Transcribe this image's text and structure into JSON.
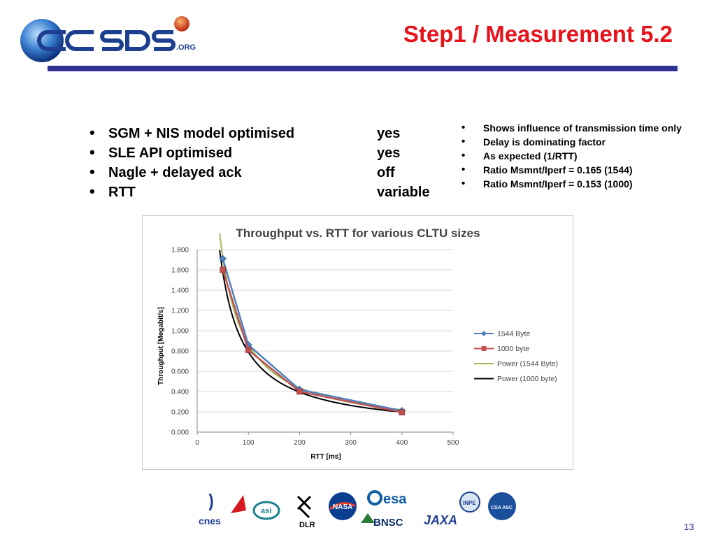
{
  "header": {
    "logo_text": "CCSDS.ORG",
    "title": "Step1 / Measurement 5.2",
    "rule_color": "#2e3192",
    "title_color": "#e8121b"
  },
  "settings": [
    {
      "label": "SGM + NIS model optimised",
      "value": "yes"
    },
    {
      "label": "SLE API optimised",
      "value": "yes"
    },
    {
      "label": "Nagle + delayed ack",
      "value": "off"
    },
    {
      "label": "RTT",
      "value": "variable"
    }
  ],
  "observations": [
    "Shows influence of transmission time only",
    "Delay is dominating factor",
    "As expected (1/RTT)",
    "Ratio Msmnt/Iperf = 0.165 (1544)",
    "Ratio Msmnt/Iperf = 0.153 (1000)"
  ],
  "chart_data": {
    "type": "scatter",
    "title": "Throughput vs. RTT for various CLTU sizes",
    "xlabel": "RTT [ms]",
    "ylabel": "Throughput [Megabit/s]",
    "xlim": [
      0,
      500
    ],
    "ylim": [
      0,
      1.8
    ],
    "x_ticks": [
      0,
      100,
      200,
      300,
      400,
      500
    ],
    "y_ticks": [
      0,
      0.2,
      0.4,
      0.6,
      0.8,
      1.0,
      1.2,
      1.4,
      1.6,
      1.8
    ],
    "x_tick_labels": [
      "0",
      "100",
      "200",
      "300",
      "400",
      "500"
    ],
    "y_tick_labels": [
      "0.000",
      "0.200",
      "0.400",
      "0.600",
      "0.800",
      "1.000",
      "1.200",
      "1.400",
      "1.600",
      "1.800"
    ],
    "grid": "horizontal",
    "legend_position": "right",
    "series": [
      {
        "name": "1544 Byte",
        "kind": "line-markers",
        "marker": "diamond",
        "color": "#4f81bd",
        "x": [
          50,
          100,
          200,
          400
        ],
        "y": [
          1.71,
          0.86,
          0.42,
          0.21
        ]
      },
      {
        "name": "1000 byte",
        "kind": "line-markers",
        "marker": "square",
        "color": "#c0504d",
        "x": [
          50,
          100,
          200,
          400
        ],
        "y": [
          1.6,
          0.81,
          0.4,
          0.195
        ]
      },
      {
        "name": "Power (1544 Byte)",
        "kind": "power-fit",
        "color": "#9bbb59",
        "coef": 83.0,
        "exp": -0.99
      },
      {
        "name": "Power (1000 byte)",
        "kind": "power-fit",
        "color": "#000000",
        "coef": 79.0,
        "exp": -1.0
      }
    ]
  },
  "footer": {
    "partners": [
      "cnes",
      "asi",
      "DLR",
      "NASA",
      "esa",
      "BNSC",
      "JAXA",
      "INPE",
      "CSA ASC"
    ],
    "page_number": "13"
  }
}
